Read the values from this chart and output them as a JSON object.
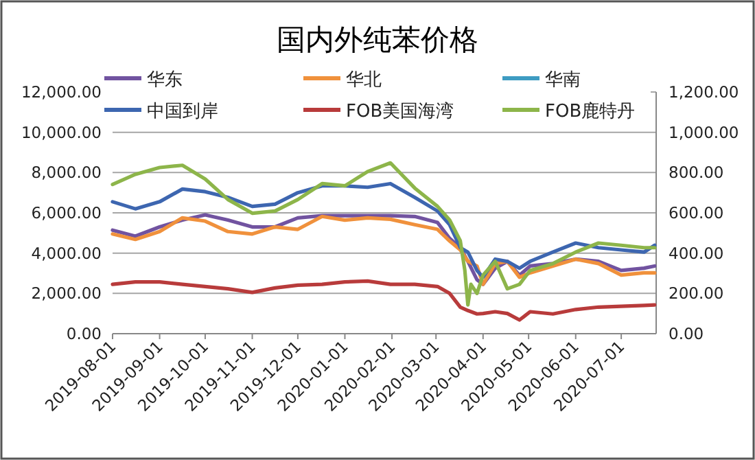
{
  "chart_data": {
    "type": "line",
    "title": "国内外纯苯价格",
    "x": [
      "2019-08-01",
      "2019-08-16",
      "2019-09-01",
      "2019-09-16",
      "2019-10-01",
      "2019-10-16",
      "2019-11-01",
      "2019-11-16",
      "2019-12-01",
      "2019-12-17",
      "2020-01-01",
      "2020-01-16",
      "2020-01-31",
      "2020-02-16",
      "2020-03-02",
      "2020-03-10",
      "2020-03-17",
      "2020-03-22",
      "2020-03-28",
      "2020-04-01",
      "2020-04-09",
      "2020-04-17",
      "2020-04-25",
      "2020-05-02",
      "2020-05-17",
      "2020-06-01",
      "2020-06-16",
      "2020-07-01",
      "2020-07-16",
      "2020-07-23"
    ],
    "series": [
      {
        "name": "华东",
        "color": "#7153a0",
        "values": [
          5140,
          4840,
          5300,
          5640,
          5900,
          5640,
          5300,
          5300,
          5750,
          5860,
          5860,
          5860,
          5860,
          5820,
          5520,
          4730,
          4270,
          3590,
          2680,
          2450,
          3250,
          3590,
          2900,
          3360,
          3480,
          3700,
          3590,
          3140,
          3250,
          3360
        ]
      },
      {
        "name": "华北",
        "color": "#f0913c",
        "values": [
          4950,
          4680,
          5070,
          5750,
          5590,
          5070,
          4950,
          5300,
          5180,
          5820,
          5640,
          5750,
          5680,
          5410,
          5180,
          4600,
          4160,
          3600,
          3360,
          2450,
          3480,
          3590,
          2800,
          3020,
          3360,
          3700,
          3480,
          2910,
          3020,
          3020
        ]
      },
      {
        "name": "华南",
        "color": "#3e9cc2",
        "values": [
          null,
          null,
          null,
          null,
          null,
          null,
          null,
          null,
          null,
          null,
          null,
          null,
          null,
          null,
          null,
          null,
          null,
          null,
          null,
          null,
          null,
          null,
          null,
          null,
          null,
          null,
          null,
          null,
          null,
          null
        ]
      },
      {
        "name": "中国到岸",
        "color": "#3d66b0",
        "values": [
          6550,
          6200,
          6550,
          7180,
          7050,
          6770,
          6320,
          6430,
          7000,
          7340,
          7340,
          7270,
          7450,
          6770,
          6090,
          5410,
          4270,
          4050,
          3140,
          2800,
          3700,
          3590,
          3250,
          3590,
          4050,
          4500,
          4270,
          4160,
          4050,
          4390
        ]
      },
      {
        "name": "FOB美国海湾",
        "color": "#b83b3b",
        "axis": "y2",
        "values": [
          245,
          257,
          257,
          245,
          234,
          223,
          205,
          227,
          241,
          245,
          257,
          261,
          245,
          245,
          234,
          200,
          132,
          115,
          98,
          100,
          109,
          100,
          68,
          109,
          98,
          120,
          132,
          136,
          140,
          143
        ]
      },
      {
        "name": "FOB鹿特丹",
        "color": "#8db54a",
        "axis": "y2",
        "x": [
          "2019-08-01",
          "2019-08-16",
          "2019-09-01",
          "2019-09-16",
          "2019-10-01",
          "2019-10-16",
          "2019-11-01",
          "2019-11-16",
          "2019-12-01",
          "2019-12-17",
          "2020-01-01",
          "2020-01-16",
          "2020-01-31",
          "2020-02-16",
          "2020-03-02",
          "2020-03-10",
          "2020-03-17",
          "2020-03-20",
          "2020-03-22",
          "2020-03-24",
          "2020-03-28",
          "2020-04-01",
          "2020-04-09",
          "2020-04-17",
          "2020-04-25",
          "2020-05-02",
          "2020-05-17",
          "2020-06-01",
          "2020-06-16",
          "2020-07-01",
          "2020-07-16",
          "2020-07-23"
        ],
        "values": [
          741,
          791,
          825,
          836,
          768,
          666,
          598,
          609,
          666,
          745,
          734,
          805,
          848,
          723,
          632,
          564,
          461,
          314,
          143,
          245,
          200,
          291,
          359,
          223,
          245,
          314,
          348,
          405,
          450,
          439,
          427,
          427
        ]
      }
    ],
    "xlim": [
      "2019-08-01",
      "2020-07-24"
    ],
    "xticks": [
      "2019-08-01",
      "2019-09-01",
      "2019-10-01",
      "2019-11-01",
      "2019-12-01",
      "2020-01-01",
      "2020-02-01",
      "2020-03-01",
      "2020-04-01",
      "2020-05-01",
      "2020-06-01",
      "2020-07-01"
    ],
    "ylim": [
      0,
      12000
    ],
    "yticks": [
      {
        "value": 0,
        "label": "0.00"
      },
      {
        "value": 2000,
        "label": "2,000.00"
      },
      {
        "value": 4000,
        "label": "4,000.00"
      },
      {
        "value": 6000,
        "label": "6,000.00"
      },
      {
        "value": 8000,
        "label": "8,000.00"
      },
      {
        "value": 10000,
        "label": "10,000.00"
      },
      {
        "value": 12000,
        "label": "12,000.00"
      }
    ],
    "y2lim": [
      0,
      1200
    ],
    "y2ticks": [
      {
        "value": 0,
        "label": "0.00"
      },
      {
        "value": 200,
        "label": "200.00"
      },
      {
        "value": 400,
        "label": "400.00"
      },
      {
        "value": 600,
        "label": "600.00"
      },
      {
        "value": 800,
        "label": "800.00"
      },
      {
        "value": 1000,
        "label": "1,000.00"
      },
      {
        "value": 1200,
        "label": "1,200.00"
      }
    ],
    "grid": "y",
    "legend": "top",
    "marker": "none",
    "line_style": "solid"
  }
}
